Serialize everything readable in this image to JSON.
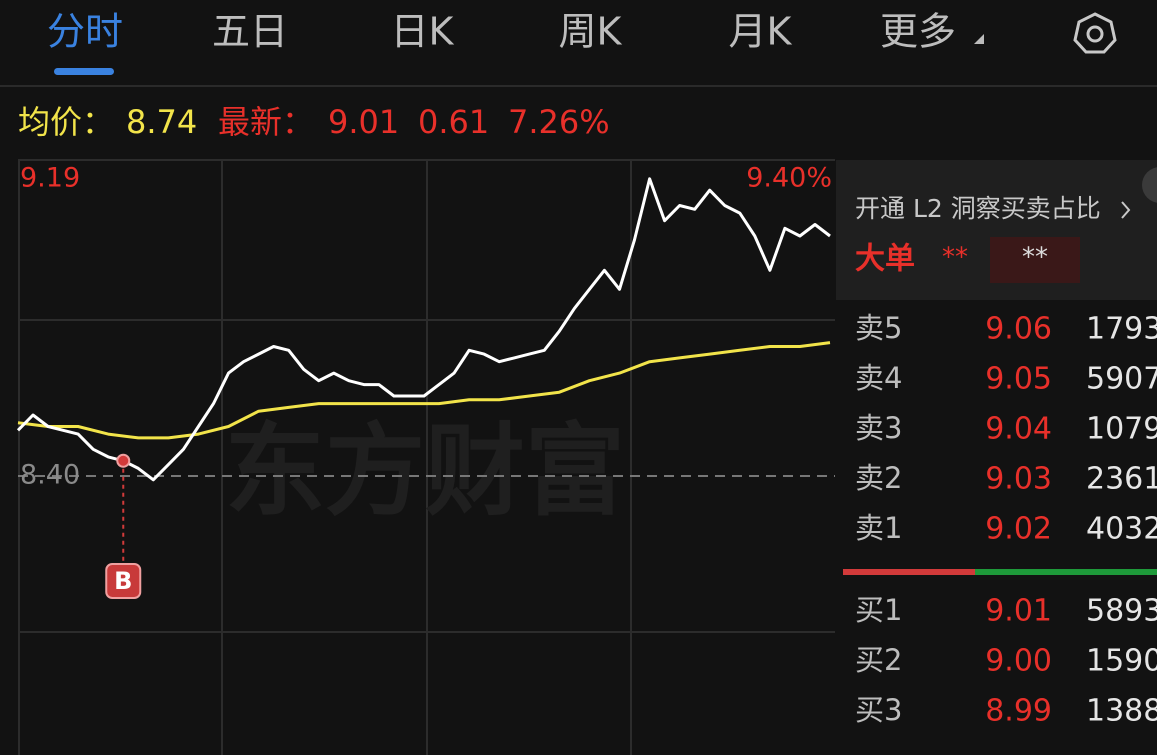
{
  "tabs": [
    "分时",
    "五日",
    "日K",
    "周K",
    "月K",
    "更多"
  ],
  "summary": {
    "avg_label": "均价：",
    "avg": "8.74",
    "latest_label": "最新：",
    "latest": "9.01",
    "change": "0.61",
    "change_pct": "7.26%"
  },
  "chart_data": {
    "type": "line",
    "ylim": [
      7.61,
      9.19
    ],
    "yticks": [
      9.19,
      {
        "value": 8.4,
        "label": "8.40"
      }
    ],
    "y2lim": [
      -9.4,
      9.4
    ],
    "y2ticks": [
      {
        "value": 9.4,
        "label": "9.40%"
      }
    ],
    "watermark": "东方财富",
    "annotation": "B",
    "series": [
      {
        "color": "#ffffff",
        "values": [
          8.52,
          8.56,
          8.53,
          8.52,
          8.51,
          8.47,
          8.45,
          8.44,
          8.42,
          8.39,
          8.43,
          8.47,
          8.53,
          8.59,
          8.67,
          8.7,
          8.72,
          8.74,
          8.73,
          8.68,
          8.65,
          8.67,
          8.65,
          8.64,
          8.64,
          8.61,
          8.61,
          8.61,
          8.64,
          8.67,
          8.73,
          8.72,
          8.7,
          8.71,
          8.72,
          8.73,
          8.78,
          8.84,
          8.89,
          8.94,
          8.89,
          9.02,
          9.18,
          9.07,
          9.11,
          9.1,
          9.15,
          9.11,
          9.09,
          9.03,
          8.94,
          9.05,
          9.03,
          9.06,
          9.03
        ]
      },
      {
        "color": "#f2e44a",
        "values": [
          8.54,
          8.53,
          8.53,
          8.51,
          8.5,
          8.5,
          8.51,
          8.53,
          8.57,
          8.58,
          8.59,
          8.59,
          8.59,
          8.59,
          8.59,
          8.6,
          8.6,
          8.61,
          8.62,
          8.65,
          8.67,
          8.7,
          8.71,
          8.72,
          8.73,
          8.74,
          8.74,
          8.75
        ]
      }
    ]
  },
  "panel": {
    "promo": "开通 L2 洞察买卖占比",
    "big_order_label": "大单",
    "big_order_values": [
      "**",
      "**"
    ],
    "asks": [
      {
        "label": "卖5",
        "price": "9.06",
        "volume": "1793"
      },
      {
        "label": "卖4",
        "price": "9.05",
        "volume": "5907"
      },
      {
        "label": "卖3",
        "price": "9.04",
        "volume": "1079"
      },
      {
        "label": "卖2",
        "price": "9.03",
        "volume": "2361"
      },
      {
        "label": "卖1",
        "price": "9.02",
        "volume": "4032"
      }
    ],
    "bids": [
      {
        "label": "买1",
        "price": "9.01",
        "volume": "5893"
      },
      {
        "label": "买2",
        "price": "9.00",
        "volume": "1590"
      },
      {
        "label": "买3",
        "price": "8.99",
        "volume": "1388"
      }
    ]
  }
}
